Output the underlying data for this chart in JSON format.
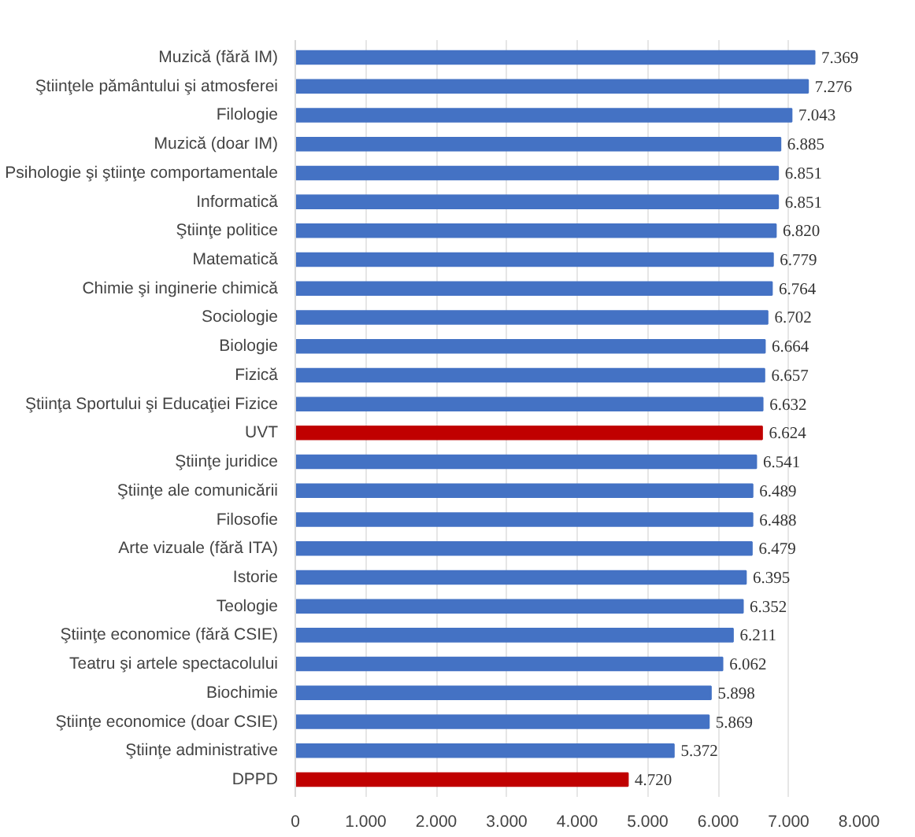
{
  "chart_data": {
    "type": "bar",
    "orientation": "horizontal",
    "categories": [
      "Muzică (fără IM)",
      "Ştiinţele pământului şi atmosferei",
      "Filologie",
      "Muzică (doar IM)",
      "Psihologie şi ştiinţe comportamentale",
      "Informatică",
      "Ştiinţe politice",
      "Matematică",
      "Chimie şi inginerie chimică",
      "Sociologie",
      "Biologie",
      "Fizică",
      "Ştiinţa Sportului şi Educaţiei Fizice",
      "UVT",
      "Ştiinţe juridice",
      "Ştiinţe ale comunicării",
      "Filosofie",
      "Arte vizuale (fără ITA)",
      "Istorie",
      "Teologie",
      "Ştiinţe economice (fără CSIE)",
      "Teatru şi artele spectacolului",
      "Biochimie",
      "Ştiinţe economice (doar CSIE)",
      "Ştiinţe administrative",
      "DPPD"
    ],
    "values": [
      7369,
      7276,
      7043,
      6885,
      6851,
      6851,
      6820,
      6779,
      6764,
      6702,
      6664,
      6657,
      6632,
      6624,
      6541,
      6489,
      6488,
      6479,
      6395,
      6352,
      6211,
      6062,
      5898,
      5869,
      5372,
      4720
    ],
    "value_labels": [
      "7.369",
      "7.276",
      "7.043",
      "6.885",
      "6.851",
      "6.851",
      "6.820",
      "6.779",
      "6.764",
      "6.702",
      "6.664",
      "6.657",
      "6.632",
      "6.624",
      "6.541",
      "6.489",
      "6.488",
      "6.479",
      "6.395",
      "6.352",
      "6.211",
      "6.062",
      "5.898",
      "5.869",
      "5.372",
      "4.720"
    ],
    "colors": [
      "#4472c4",
      "#4472c4",
      "#4472c4",
      "#4472c4",
      "#4472c4",
      "#4472c4",
      "#4472c4",
      "#4472c4",
      "#4472c4",
      "#4472c4",
      "#4472c4",
      "#4472c4",
      "#4472c4",
      "#c00000",
      "#4472c4",
      "#4472c4",
      "#4472c4",
      "#4472c4",
      "#4472c4",
      "#4472c4",
      "#4472c4",
      "#4472c4",
      "#4472c4",
      "#4472c4",
      "#4472c4",
      "#c00000"
    ],
    "xlim": [
      0,
      8000
    ],
    "xticks": [
      {
        "value": 0,
        "label": "0"
      },
      {
        "value": 1000,
        "label": "1.000"
      },
      {
        "value": 2000,
        "label": "2.000"
      },
      {
        "value": 3000,
        "label": "3.000"
      },
      {
        "value": 4000,
        "label": "4.000"
      },
      {
        "value": 5000,
        "label": "5.000"
      },
      {
        "value": 6000,
        "label": "6.000"
      },
      {
        "value": 7000,
        "label": "7.000"
      },
      {
        "value": 8000,
        "label": "8.000"
      }
    ],
    "grid": "x"
  }
}
